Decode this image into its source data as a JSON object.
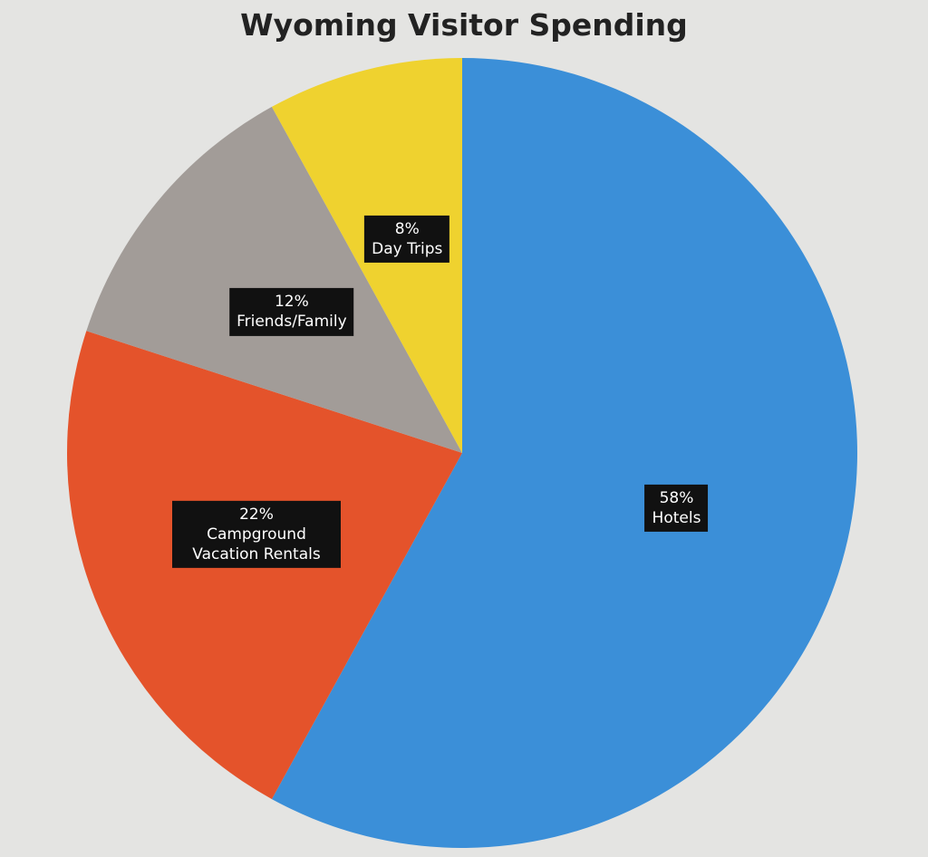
{
  "chart_data": {
    "type": "pie",
    "title": "Wyoming Visitor Spending",
    "categories": [
      "Hotels",
      "Campground Vacation Rentals",
      "Friends/Family",
      "Day Trips"
    ],
    "values": [
      58,
      22,
      12,
      8
    ],
    "value_labels": [
      "58%",
      "22%",
      "12%",
      "8%"
    ],
    "colors": [
      "#3b8fd8",
      "#e4532b",
      "#a29c98",
      "#efd22f"
    ]
  }
}
